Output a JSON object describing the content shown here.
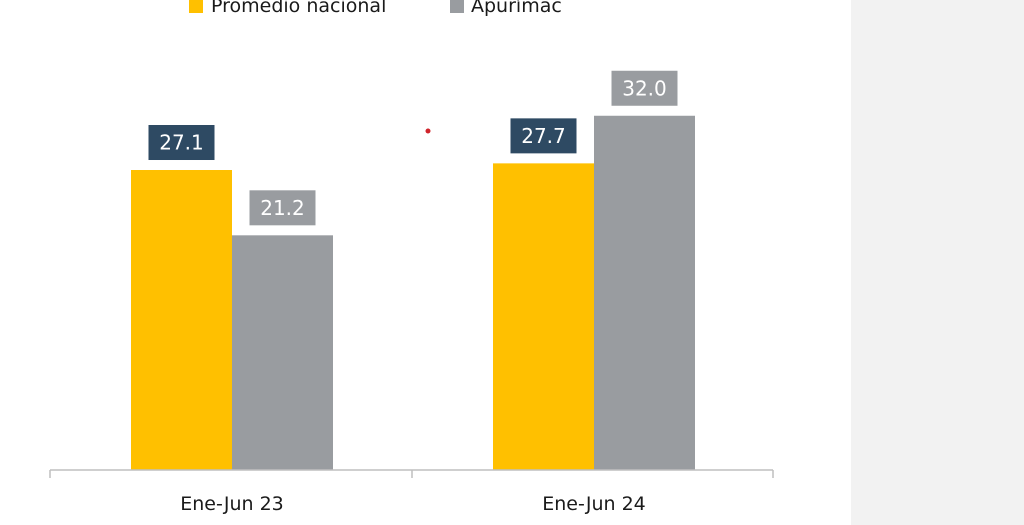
{
  "chart_data": {
    "type": "bar",
    "categories": [
      "Ene-Jun 23",
      "Ene-Jun 24"
    ],
    "series": [
      {
        "name": "Promedio nacional",
        "color": "#ffc000",
        "label_bg": "#2e4a63",
        "values": [
          27.1,
          27.7
        ]
      },
      {
        "name": "Apurímac",
        "color": "#999ca0",
        "label_bg": "#999ca0",
        "values": [
          21.2,
          32.0
        ]
      }
    ],
    "ylim": [
      0,
      40
    ],
    "value_labels": true,
    "grid": false,
    "legend_position": "top"
  }
}
